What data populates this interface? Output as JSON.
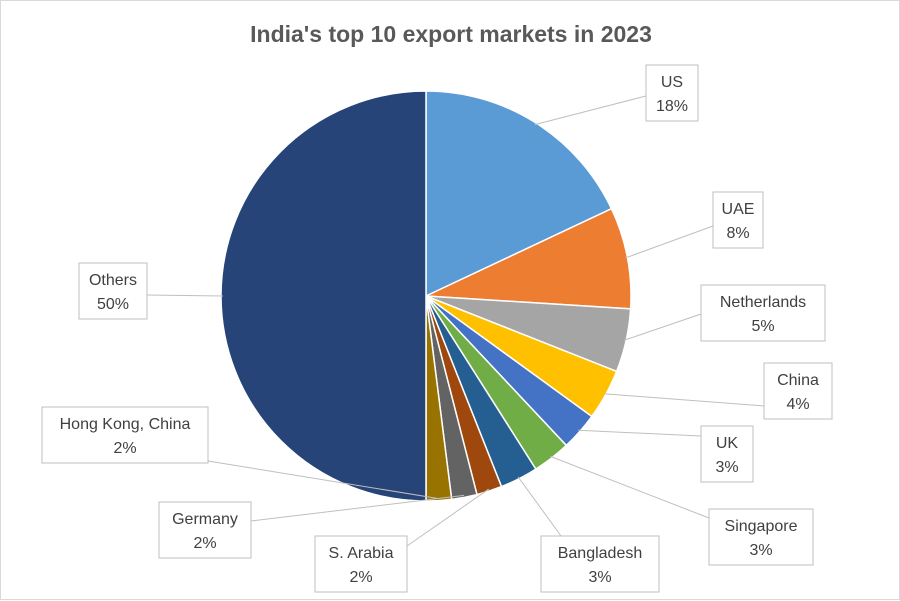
{
  "chart_data": {
    "type": "pie",
    "title": "India's top 10 export markets in 2023",
    "slices": [
      {
        "name": "US",
        "value": 18,
        "label": "18%",
        "color": "#5B9BD5"
      },
      {
        "name": "UAE",
        "value": 8,
        "label": "8%",
        "color": "#ED7D31"
      },
      {
        "name": "Netherlands",
        "value": 5,
        "label": "5%",
        "color": "#A5A5A5"
      },
      {
        "name": "China",
        "value": 4,
        "label": "4%",
        "color": "#FFC000"
      },
      {
        "name": "UK",
        "value": 3,
        "label": "3%",
        "color": "#4472C4"
      },
      {
        "name": "Singapore",
        "value": 3,
        "label": "3%",
        "color": "#70AD47"
      },
      {
        "name": "Bangladesh",
        "value": 3,
        "label": "3%",
        "color": "#255E91"
      },
      {
        "name": "S. Arabia",
        "value": 2,
        "label": "2%",
        "color": "#9E480E"
      },
      {
        "name": "Germany",
        "value": 2,
        "label": "2%",
        "color": "#636363"
      },
      {
        "name": "Hong Kong, China",
        "value": 2,
        "label": "2%",
        "color": "#997300"
      },
      {
        "name": "Others",
        "value": 50,
        "label": "50%",
        "color": "#264478"
      }
    ]
  }
}
